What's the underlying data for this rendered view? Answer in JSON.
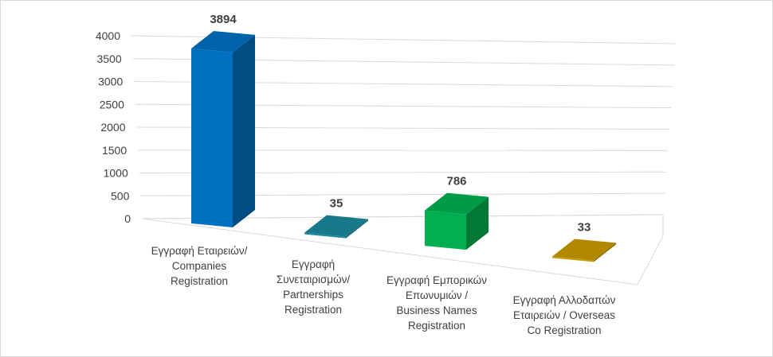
{
  "chart_data": {
    "type": "bar",
    "title": "",
    "xlabel": "",
    "ylabel": "",
    "ylim": [
      0,
      4000
    ],
    "yticks": [
      0,
      500,
      1000,
      1500,
      2000,
      2500,
      3000,
      3500,
      4000
    ],
    "grid": true,
    "legend": "none",
    "categories": [
      [
        "Εγγραφή Εταιρειών/",
        "Companies",
        "Registration"
      ],
      [
        "Εγγραφή",
        "Συνεταιρισμών/",
        "Partnerships",
        "Registration"
      ],
      [
        "Εγγραφή Εμπορικών",
        "Επωνυμιών /",
        "Business Names",
        "Registration"
      ],
      [
        "Εγγραφή Αλλοδαπών",
        "Εταιρειών / Overseas",
        "Co Registration"
      ]
    ],
    "values": [
      3894,
      35,
      786,
      33
    ],
    "colors": [
      "#0070c0",
      "#1b8a9e",
      "#00b050",
      "#c99a00"
    ]
  }
}
